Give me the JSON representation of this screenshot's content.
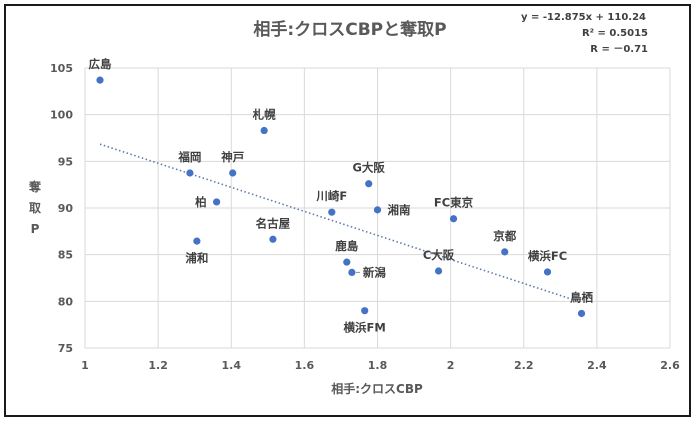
{
  "chart_data": {
    "type": "scatter",
    "title": "相手:クロスCBPと奪取P",
    "xlabel": "相手:クロスCBP",
    "ylabel": "奪取P",
    "ylabel_chars": [
      "奪",
      "取",
      "P"
    ],
    "xlim": [
      1,
      2.6
    ],
    "ylim": [
      75,
      105
    ],
    "xticks": [
      "1",
      "1.2",
      "1.4",
      "1.6",
      "1.8",
      "2",
      "2.2",
      "2.4",
      "2.6"
    ],
    "xtick_values": [
      1,
      1.2,
      1.4,
      1.6,
      1.8,
      2,
      2.2,
      2.4,
      2.6
    ],
    "yticks": [
      "75",
      "80",
      "85",
      "90",
      "95",
      "100",
      "105"
    ],
    "ytick_values": [
      75,
      80,
      85,
      90,
      95,
      100,
      105
    ],
    "grid": true,
    "marker_color": "#4472c4",
    "trendline_color": "#5b7fa8",
    "trendline": {
      "slope": -12.875,
      "intercept": 110.24,
      "equation": "y = -12.875x + 110.24",
      "r2_label": "R² = 0.5015",
      "r_label": "R = －0.71"
    },
    "points": [
      {
        "label": "広島",
        "x": 1.041,
        "y": 103.7,
        "pos": "above"
      },
      {
        "label": "札幌",
        "x": 1.49,
        "y": 98.3,
        "pos": "above"
      },
      {
        "label": "福岡",
        "x": 1.287,
        "y": 93.75,
        "pos": "above"
      },
      {
        "label": "神戸",
        "x": 1.404,
        "y": 93.75,
        "pos": "above"
      },
      {
        "label": "柏",
        "x": 1.36,
        "y": 90.65,
        "pos": "left"
      },
      {
        "label": "浦和",
        "x": 1.306,
        "y": 86.45,
        "pos": "below"
      },
      {
        "label": "名古屋",
        "x": 1.514,
        "y": 86.65,
        "pos": "above"
      },
      {
        "label": "G大阪",
        "x": 1.776,
        "y": 92.6,
        "pos": "above"
      },
      {
        "label": "川崎F",
        "x": 1.675,
        "y": 89.55,
        "pos": "above"
      },
      {
        "label": "湘南",
        "x": 1.8,
        "y": 89.8,
        "pos": "right"
      },
      {
        "label": "FC東京",
        "x": 2.008,
        "y": 88.85,
        "pos": "above"
      },
      {
        "label": "鹿島",
        "x": 1.716,
        "y": 84.2,
        "pos": "above"
      },
      {
        "label": "新潟",
        "x": 1.73,
        "y": 83.1,
        "pos": "right-leader"
      },
      {
        "label": "C大阪",
        "x": 1.967,
        "y": 83.25,
        "pos": "above"
      },
      {
        "label": "京都",
        "x": 2.148,
        "y": 85.3,
        "pos": "above"
      },
      {
        "label": "横浜FC",
        "x": 2.265,
        "y": 83.15,
        "pos": "above"
      },
      {
        "label": "横浜FM",
        "x": 1.765,
        "y": 79.0,
        "pos": "below"
      },
      {
        "label": "鳥栖",
        "x": 2.358,
        "y": 78.7,
        "pos": "above"
      }
    ]
  }
}
